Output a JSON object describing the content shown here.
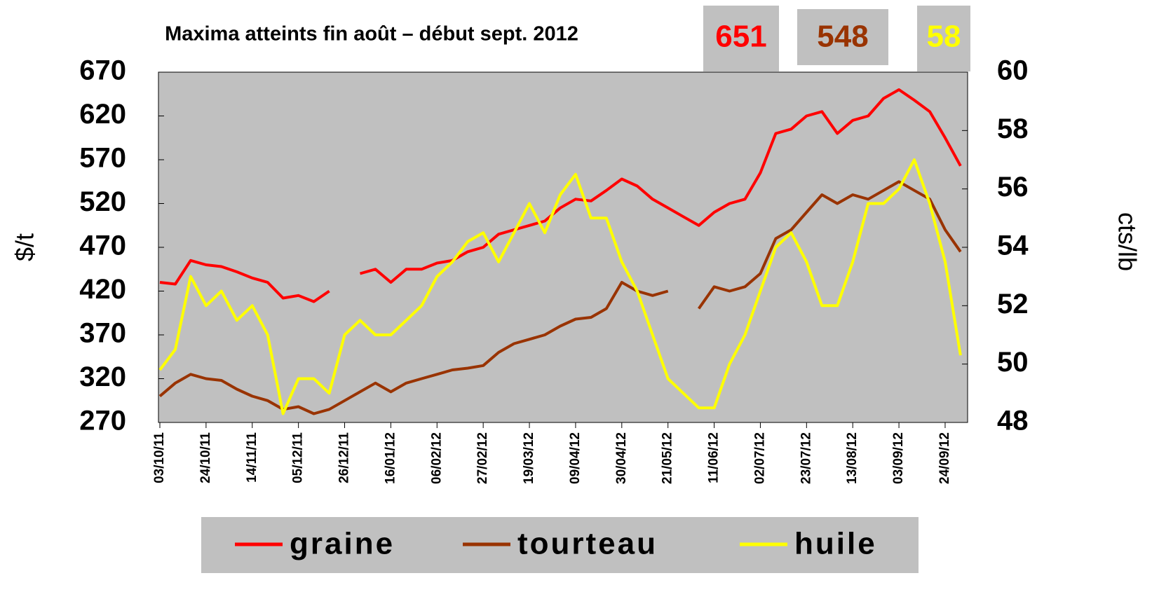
{
  "chart_data": {
    "type": "line",
    "title": "Maxima atteints fin août – début sept. 2012",
    "annotations": [
      651,
      548,
      58
    ],
    "ylabel": "$/t",
    "y2label": "cts/lb",
    "categories": [
      "03/10/11",
      null,
      null,
      "24/10/11",
      null,
      null,
      "14/11/11",
      null,
      null,
      "05/12/11",
      null,
      null,
      "26/12/11",
      null,
      null,
      "16/01/12",
      null,
      null,
      "06/02/12",
      null,
      null,
      "27/02/12",
      null,
      null,
      "19/03/12",
      null,
      null,
      "09/04/12",
      null,
      null,
      "30/04/12",
      null,
      null,
      "21/05/12",
      null,
      null,
      "11/06/12",
      null,
      null,
      "02/07/12",
      null,
      null,
      "23/07/12",
      null,
      null,
      "13/08/12",
      null,
      null,
      "03/09/12",
      null,
      null,
      "24/09/12",
      null
    ],
    "series": [
      {
        "name": "graine",
        "color": "#ff0000",
        "values": [
          430,
          428,
          455,
          450,
          448,
          442,
          435,
          430,
          412,
          415,
          408,
          420,
          null,
          440,
          445,
          430,
          445,
          445,
          452,
          455,
          465,
          470,
          485,
          490,
          495,
          500,
          515,
          525,
          523,
          535,
          548,
          540,
          525,
          515,
          505,
          495,
          510,
          520,
          525,
          555,
          600,
          605,
          620,
          625,
          600,
          615,
          620,
          640,
          650,
          638,
          625,
          595,
          563
        ]
      },
      {
        "name": "tourteau",
        "color": "#993300",
        "values": [
          300,
          315,
          325,
          320,
          318,
          308,
          300,
          295,
          285,
          288,
          280,
          285,
          295,
          305,
          315,
          305,
          315,
          320,
          325,
          330,
          332,
          335,
          350,
          360,
          365,
          370,
          380,
          388,
          390,
          400,
          430,
          420,
          415,
          420,
          null,
          400,
          425,
          420,
          425,
          440,
          480,
          490,
          510,
          530,
          520,
          530,
          525,
          535,
          545,
          535,
          525,
          490,
          465
        ]
      },
      {
        "name": "huile",
        "color": "#ffff00",
        "axis": "y2",
        "values": [
          49.8,
          50.5,
          53,
          52,
          52.5,
          51.5,
          52,
          51,
          48.3,
          49.5,
          49.5,
          49,
          51,
          51.5,
          51,
          51,
          51.5,
          52,
          53,
          53.5,
          54.2,
          54.5,
          53.5,
          54.5,
          55.5,
          54.5,
          55.8,
          56.5,
          55,
          55,
          53.5,
          52.5,
          51,
          49.5,
          49,
          48.5,
          48.5,
          50,
          51,
          52.5,
          54,
          54.5,
          53.5,
          52,
          52,
          53.5,
          55.5,
          55.5,
          56,
          57,
          55.5,
          53.5,
          50.3
        ]
      }
    ],
    "ylim": [
      270,
      670
    ],
    "yticks": [
      270,
      320,
      370,
      420,
      470,
      520,
      570,
      620,
      670
    ],
    "y2lim": [
      48,
      60
    ],
    "y2ticks": [
      48,
      50,
      52,
      54,
      56,
      58,
      60
    ],
    "plot_background": "#c0c0c0"
  }
}
